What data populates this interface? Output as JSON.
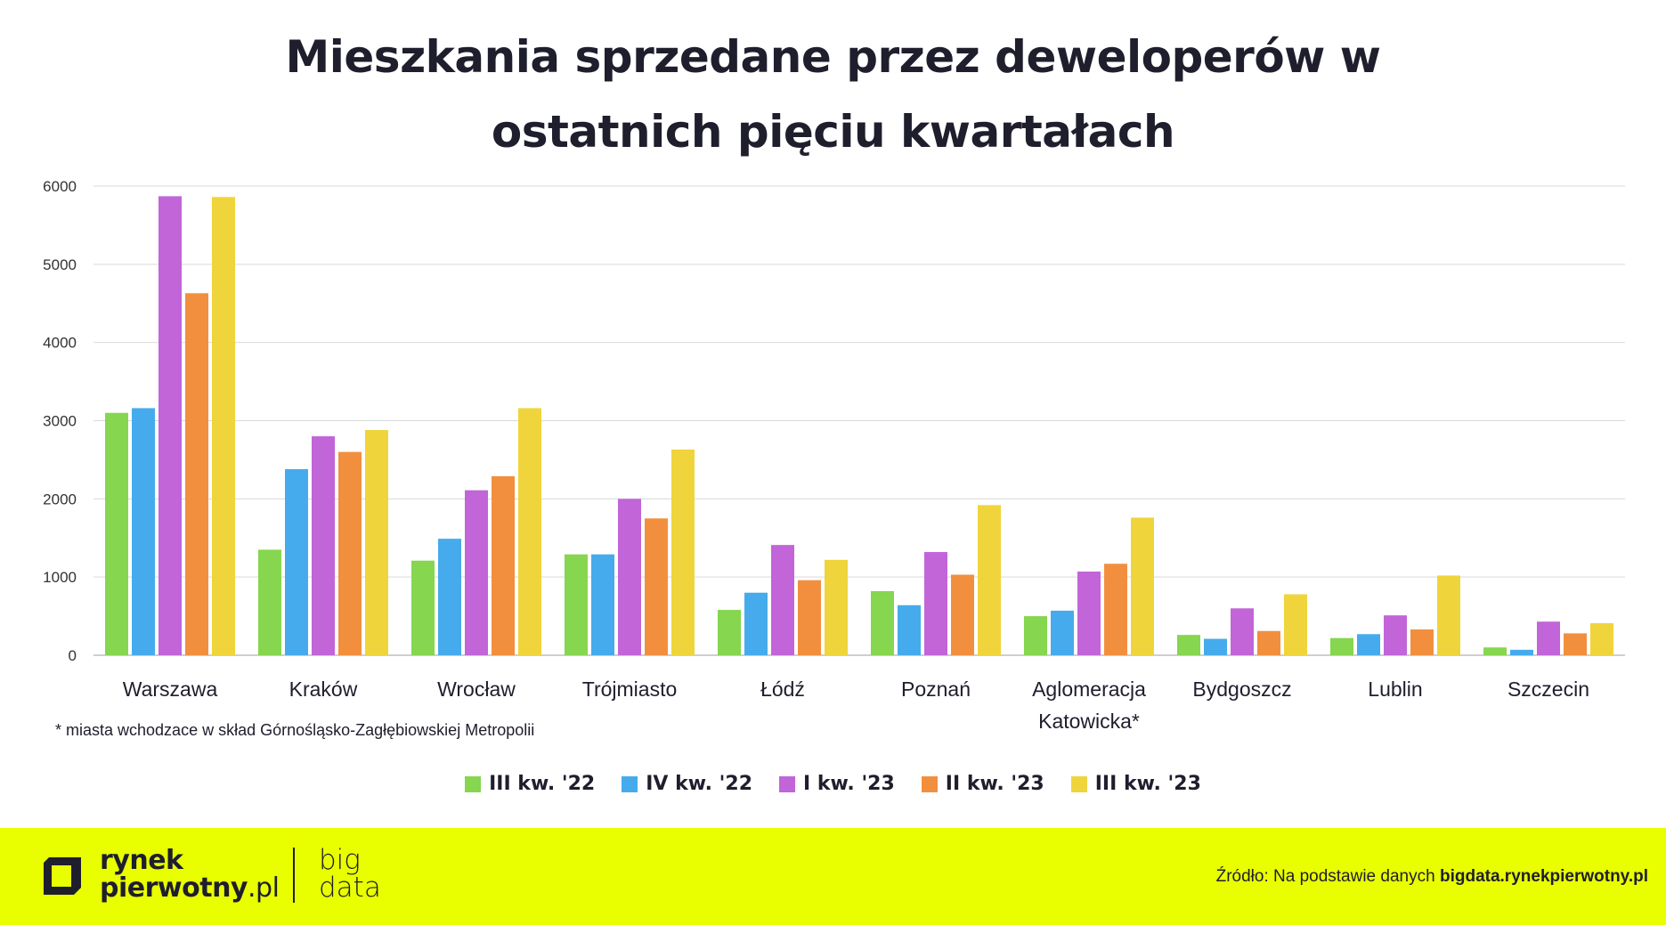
{
  "title_line1": "Mieszkania sprzedane przez deweloperów w",
  "title_line2": "ostatnich pięciu kwartałach",
  "footnote": "* miasta wchodzace w skład Górnośląsko-Zagłębiowskiej Metropolii",
  "footer": {
    "brand_line1": "rynek",
    "brand_line2a": "pierwotny",
    "brand_line2b": ".pl",
    "bigdata_line1": "big",
    "bigdata_line2": "data",
    "source_prefix": "Źródło: Na podstawie danych ",
    "source_site": "bigdata.rynekpierwotny.pl",
    "accent_color": "#e9ff00"
  },
  "chart_data": {
    "type": "bar",
    "title": "Mieszkania sprzedane przez deweloperów w ostatnich pięciu kwartałach",
    "categories": [
      [
        "Warszawa"
      ],
      [
        "Kraków"
      ],
      [
        "Wrocław"
      ],
      [
        "Trójmiasto"
      ],
      [
        "Łódź"
      ],
      [
        "Poznań"
      ],
      [
        "Aglomeracja",
        "Katowicka*"
      ],
      [
        "Bydgoszcz"
      ],
      [
        "Lublin"
      ],
      [
        "Szczecin"
      ]
    ],
    "series": [
      {
        "name": "III kw. '22",
        "color": "#86d64f",
        "values": [
          3100,
          1350,
          1210,
          1290,
          580,
          820,
          500,
          260,
          220,
          100
        ]
      },
      {
        "name": "IV kw. '22",
        "color": "#46abec",
        "values": [
          3160,
          2380,
          1490,
          1290,
          800,
          640,
          570,
          210,
          270,
          70
        ]
      },
      {
        "name": "I kw. '23",
        "color": "#c165d8",
        "values": [
          5870,
          2800,
          2110,
          2000,
          1410,
          1320,
          1070,
          600,
          510,
          430
        ]
      },
      {
        "name": "II kw. '23",
        "color": "#f28f3f",
        "values": [
          4630,
          2600,
          2290,
          1750,
          960,
          1030,
          1170,
          310,
          330,
          280
        ]
      },
      {
        "name": "III kw. '23",
        "color": "#f0d43b",
        "values": [
          5860,
          2880,
          3160,
          2630,
          1220,
          1920,
          1760,
          780,
          1020,
          410
        ]
      }
    ],
    "ylim": [
      0,
      6000
    ],
    "yticks": [
      0,
      1000,
      2000,
      3000,
      4000,
      5000,
      6000
    ],
    "grid": true,
    "legend": "bottom"
  }
}
